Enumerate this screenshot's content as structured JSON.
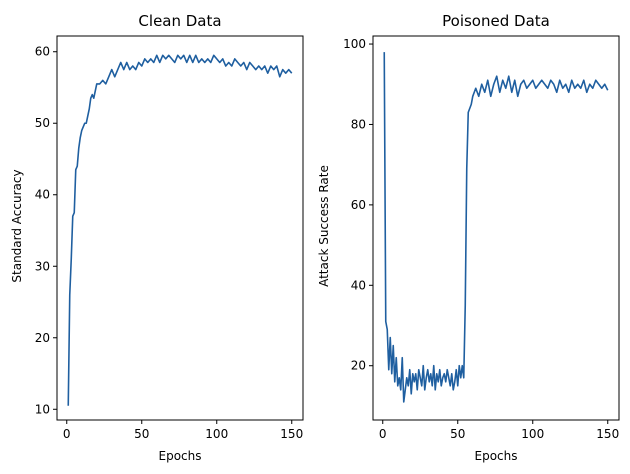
{
  "chart_data": [
    {
      "type": "line",
      "title": "Clean Data",
      "xlabel": "Epochs",
      "ylabel": "Standard Accuracy",
      "xlim": [
        -6.5,
        157.5
      ],
      "ylim": [
        8.5,
        62.2
      ],
      "xticks": [
        0,
        50,
        100,
        150
      ],
      "yticks": [
        10,
        20,
        30,
        40,
        50,
        60
      ],
      "grid": false,
      "color": "#1f5fa0",
      "series": [
        {
          "x": [
            1,
            2,
            3,
            4,
            5,
            6,
            7,
            8,
            9,
            10,
            11,
            12,
            13,
            14,
            15,
            16,
            17,
            18,
            19,
            20,
            22,
            24,
            26,
            28,
            30,
            32,
            34,
            36,
            38,
            40,
            42,
            44,
            46,
            48,
            50,
            52,
            54,
            56,
            58,
            60,
            62,
            64,
            66,
            68,
            70,
            72,
            74,
            76,
            78,
            80,
            82,
            84,
            86,
            88,
            90,
            92,
            94,
            96,
            98,
            100,
            102,
            104,
            106,
            108,
            110,
            112,
            114,
            116,
            118,
            120,
            122,
            124,
            126,
            128,
            130,
            132,
            134,
            136,
            138,
            140,
            142,
            144,
            146,
            148,
            150
          ],
          "values": [
            10.5,
            26,
            31,
            37,
            37.5,
            43.5,
            44,
            46.5,
            48,
            49,
            49.5,
            50,
            50,
            51,
            52,
            53.5,
            54,
            53.5,
            54.5,
            55.5,
            55.5,
            56,
            55.5,
            56.5,
            57.5,
            56.5,
            57.5,
            58.5,
            57.5,
            58.5,
            57.5,
            58,
            57.5,
            58.5,
            58,
            59,
            58.5,
            59,
            58.5,
            59.5,
            58.5,
            59.5,
            59,
            59.5,
            59,
            58.5,
            59.5,
            59,
            59.5,
            58.5,
            59.5,
            58.5,
            59.5,
            58.5,
            59,
            58.5,
            59,
            58.5,
            59.5,
            59,
            58.5,
            59,
            58,
            58.5,
            58,
            59,
            58.5,
            58,
            58.5,
            57.5,
            58.5,
            58,
            57.5,
            58,
            57.5,
            58,
            57,
            58,
            57.5,
            58,
            56.5,
            57.5,
            57,
            57.5,
            57
          ]
        }
      ]
    },
    {
      "type": "line",
      "title": "Poisoned Data",
      "xlabel": "Epochs",
      "ylabel": "Attack Success Rate",
      "xlim": [
        -6.5,
        157.5
      ],
      "ylim": [
        6.5,
        102
      ],
      "xticks": [
        0,
        50,
        100,
        150
      ],
      "yticks": [
        20,
        40,
        60,
        80,
        100
      ],
      "grid": false,
      "color": "#1f5fa0",
      "series": [
        {
          "x": [
            1,
            2,
            3,
            4,
            5,
            6,
            7,
            8,
            9,
            10,
            11,
            12,
            13,
            14,
            15,
            16,
            17,
            18,
            19,
            20,
            21,
            22,
            23,
            24,
            25,
            26,
            27,
            28,
            29,
            30,
            31,
            32,
            33,
            34,
            35,
            36,
            37,
            38,
            39,
            40,
            41,
            42,
            43,
            44,
            45,
            46,
            47,
            48,
            49,
            50,
            51,
            52,
            53,
            54,
            55,
            56,
            57,
            58,
            59,
            60,
            62,
            64,
            66,
            68,
            70,
            72,
            74,
            76,
            78,
            80,
            82,
            84,
            86,
            88,
            90,
            92,
            94,
            96,
            98,
            100,
            102,
            104,
            106,
            108,
            110,
            112,
            114,
            116,
            118,
            120,
            122,
            124,
            126,
            128,
            130,
            132,
            134,
            136,
            138,
            140,
            142,
            144,
            146,
            148,
            150
          ],
          "values": [
            98,
            31,
            29,
            19,
            27,
            18,
            25,
            16,
            22,
            15,
            17,
            14,
            22,
            11,
            14,
            17,
            15,
            19,
            13,
            18,
            16,
            18,
            14,
            19,
            17,
            15,
            20,
            14,
            17,
            19,
            16,
            18,
            15,
            20,
            14,
            18,
            16,
            19,
            15,
            17,
            18,
            16,
            19,
            17,
            15,
            18,
            14,
            16,
            19,
            15,
            20,
            17,
            20,
            17,
            35,
            69,
            83,
            84,
            85,
            87,
            89,
            87,
            90,
            88,
            91,
            87,
            90,
            92,
            88,
            91,
            89,
            92,
            88,
            91,
            87,
            90,
            91,
            89,
            90,
            91,
            89,
            90,
            91,
            90,
            89,
            91,
            90,
            88,
            91,
            89,
            90,
            88,
            91,
            89,
            90,
            89,
            91,
            88,
            90,
            89,
            91,
            90,
            89,
            90,
            88.5
          ]
        }
      ]
    }
  ]
}
